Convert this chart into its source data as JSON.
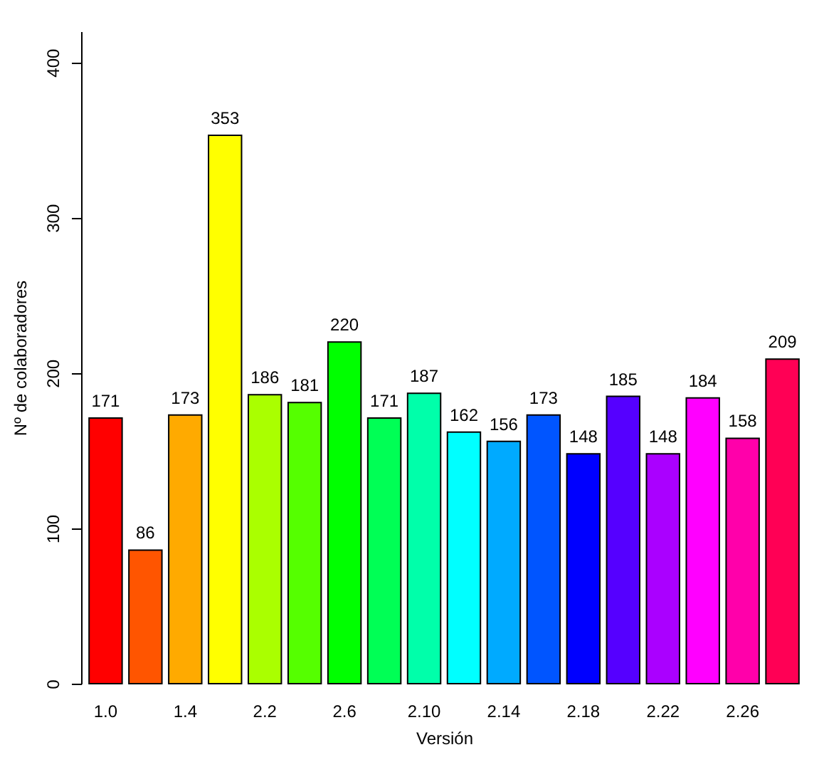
{
  "chart_data": {
    "type": "bar",
    "xlabel": "Versión",
    "ylabel": "Nº de colaboradores",
    "categories": [
      "1.0",
      null,
      "1.4",
      null,
      "2.2",
      null,
      "2.6",
      null,
      "2.10",
      null,
      "2.14",
      null,
      "2.18",
      null,
      "2.22",
      null,
      "2.26",
      null
    ],
    "values": [
      171,
      86,
      173,
      353,
      186,
      181,
      220,
      171,
      187,
      162,
      156,
      173,
      148,
      185,
      148,
      184,
      158,
      209
    ],
    "colors": [
      "#ff0000",
      "#ff5500",
      "#ffaa00",
      "#ffff00",
      "#aaff00",
      "#55ff00",
      "#00ff00",
      "#00ff55",
      "#00ffaa",
      "#00ffff",
      "#00aaff",
      "#0055ff",
      "#0000ff",
      "#5500ff",
      "#aa00ff",
      "#ff00ff",
      "#ff00aa",
      "#ff0055"
    ],
    "ylim": [
      0,
      420
    ],
    "yticks": [
      0,
      100,
      200,
      300,
      400
    ],
    "data_labels": true
  }
}
